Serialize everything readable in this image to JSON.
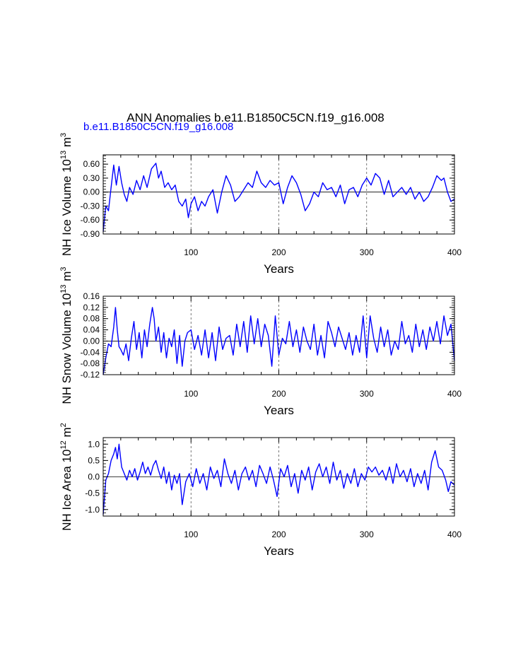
{
  "title": "ANN Anomalies b.e11.B1850C5CN.f19_g16.008",
  "subtitle": "b.e11.B1850C5CN.f19_g16.008",
  "colors": {
    "series": "#0000ff",
    "axis": "#000000",
    "refline": "#555555"
  },
  "chart_data": [
    {
      "type": "line",
      "ylabel": "NH Ice Volume",
      "ylabel_exp": "13",
      "ylabel_unit": "m",
      "ylabel_unit_exp": "3",
      "xlabel": "Years",
      "xlim": [
        0,
        400
      ],
      "ylim": [
        -0.9,
        0.8
      ],
      "xticks": [
        100,
        200,
        300,
        400
      ],
      "yticks": [
        -0.9,
        -0.6,
        -0.3,
        0.0,
        0.3,
        0.6
      ],
      "ytick_labels": [
        "-0.90",
        "-0.60",
        "-0.30",
        "0.00",
        "0.30",
        "0.60"
      ],
      "refx": [
        100,
        200,
        300
      ],
      "series": [
        {
          "name": "NH Ice Volume",
          "x": [
            0,
            3,
            6,
            9,
            12,
            15,
            18,
            21,
            24,
            27,
            30,
            34,
            38,
            42,
            46,
            50,
            55,
            60,
            63,
            66,
            70,
            74,
            78,
            82,
            86,
            90,
            94,
            97,
            100,
            104,
            108,
            112,
            116,
            120,
            125,
            130,
            135,
            140,
            145,
            150,
            155,
            160,
            165,
            170,
            175,
            180,
            185,
            190,
            195,
            200,
            205,
            210,
            215,
            220,
            225,
            230,
            235,
            240,
            245,
            250,
            255,
            260,
            265,
            270,
            275,
            280,
            285,
            290,
            295,
            300,
            305,
            310,
            315,
            320,
            325,
            330,
            335,
            340,
            345,
            350,
            355,
            360,
            365,
            370,
            375,
            380,
            385,
            388,
            392,
            396,
            400
          ],
          "values": [
            -0.85,
            -0.3,
            -0.4,
            0.1,
            0.58,
            0.15,
            0.55,
            0.2,
            -0.05,
            -0.2,
            0.1,
            -0.05,
            0.25,
            0.05,
            0.35,
            0.1,
            0.5,
            0.62,
            0.3,
            0.45,
            0.1,
            0.2,
            0.05,
            0.15,
            -0.2,
            -0.3,
            -0.15,
            -0.55,
            -0.25,
            -0.1,
            -0.4,
            -0.2,
            -0.3,
            -0.1,
            0.05,
            -0.45,
            0.0,
            0.35,
            0.15,
            -0.2,
            -0.1,
            0.05,
            0.2,
            0.1,
            0.45,
            0.2,
            0.1,
            0.25,
            0.15,
            0.2,
            -0.25,
            0.1,
            0.35,
            0.2,
            -0.05,
            -0.4,
            -0.25,
            0.0,
            -0.1,
            0.2,
            0.05,
            0.1,
            -0.1,
            0.15,
            -0.25,
            0.05,
            0.1,
            -0.1,
            0.15,
            0.3,
            0.15,
            0.4,
            0.3,
            -0.05,
            0.25,
            -0.1,
            0.0,
            0.1,
            -0.05,
            0.1,
            -0.15,
            0.0,
            -0.2,
            -0.1,
            0.1,
            0.35,
            0.25,
            0.3,
            0.0,
            -0.2,
            -0.15
          ]
        }
      ]
    },
    {
      "type": "line",
      "ylabel": "NH Snow Volume",
      "ylabel_exp": "13",
      "ylabel_unit": "m",
      "ylabel_unit_exp": "3",
      "xlabel": "Years",
      "xlim": [
        0,
        400
      ],
      "ylim": [
        -0.12,
        0.16
      ],
      "xticks": [
        100,
        200,
        300,
        400
      ],
      "yticks": [
        -0.12,
        -0.08,
        -0.04,
        0.0,
        0.04,
        0.08,
        0.12,
        0.16
      ],
      "ytick_labels": [
        "-0.12",
        "-0.08",
        "-0.04",
        "0.00",
        "0.04",
        "0.08",
        "0.12",
        "0.16"
      ],
      "refx": [
        100,
        200,
        300
      ],
      "series": [
        {
          "name": "NH Snow Volume",
          "x": [
            0,
            3,
            6,
            9,
            12,
            14,
            16,
            18,
            20,
            23,
            26,
            29,
            32,
            35,
            38,
            41,
            44,
            47,
            50,
            53,
            56,
            58,
            60,
            63,
            66,
            69,
            72,
            75,
            78,
            81,
            84,
            87,
            90,
            93,
            96,
            100,
            104,
            108,
            112,
            116,
            120,
            124,
            128,
            132,
            136,
            140,
            144,
            148,
            152,
            156,
            160,
            164,
            168,
            172,
            176,
            180,
            184,
            188,
            192,
            196,
            200,
            204,
            208,
            212,
            216,
            220,
            224,
            228,
            232,
            236,
            240,
            244,
            248,
            252,
            256,
            260,
            264,
            268,
            272,
            276,
            280,
            284,
            288,
            292,
            296,
            300,
            304,
            308,
            312,
            316,
            320,
            324,
            328,
            332,
            336,
            340,
            344,
            348,
            352,
            356,
            360,
            364,
            368,
            372,
            376,
            380,
            384,
            388,
            392,
            396,
            400
          ],
          "values": [
            -0.12,
            -0.06,
            -0.01,
            -0.02,
            0.05,
            0.12,
            0.04,
            -0.02,
            -0.03,
            -0.05,
            -0.01,
            -0.07,
            0.01,
            0.07,
            -0.03,
            0.03,
            -0.06,
            0.04,
            -0.02,
            0.06,
            0.12,
            0.08,
            0.0,
            0.05,
            -0.04,
            0.03,
            -0.06,
            0.01,
            -0.02,
            0.04,
            -0.08,
            0.02,
            -0.09,
            0.0,
            0.03,
            0.04,
            -0.03,
            0.02,
            -0.05,
            0.04,
            -0.06,
            0.03,
            -0.07,
            0.05,
            -0.03,
            0.01,
            0.02,
            -0.05,
            0.06,
            -0.02,
            0.07,
            -0.04,
            0.09,
            -0.01,
            0.08,
            -0.02,
            0.06,
            0.02,
            -0.09,
            0.09,
            -0.05,
            0.01,
            -0.01,
            0.07,
            -0.02,
            0.04,
            -0.04,
            0.05,
            0.0,
            -0.03,
            0.06,
            -0.05,
            0.02,
            -0.06,
            0.07,
            0.03,
            -0.02,
            0.05,
            0.01,
            -0.03,
            0.03,
            -0.05,
            0.02,
            -0.04,
            0.09,
            -0.06,
            0.09,
            0.01,
            -0.04,
            0.05,
            -0.02,
            0.04,
            -0.05,
            0.0,
            -0.03,
            0.07,
            -0.01,
            0.02,
            -0.04,
            0.06,
            -0.02,
            0.04,
            -0.03,
            0.05,
            0.0,
            0.07,
            -0.01,
            0.09,
            0.02,
            0.06,
            -0.07
          ]
        }
      ]
    },
    {
      "type": "line",
      "ylabel": "NH Ice Area",
      "ylabel_exp": "12",
      "ylabel_unit": "m",
      "ylabel_unit_exp": "2",
      "xlabel": "Years",
      "xlim": [
        0,
        400
      ],
      "ylim": [
        -1.2,
        1.2
      ],
      "xticks": [
        100,
        200,
        300,
        400
      ],
      "yticks": [
        -1.0,
        -0.5,
        0.0,
        0.5,
        1.0
      ],
      "ytick_labels": [
        "-1.0",
        "-0.5",
        "0.0",
        "0.5",
        "1.0"
      ],
      "refx": [
        100,
        200,
        300
      ],
      "series": [
        {
          "name": "NH Ice Area",
          "x": [
            0,
            3,
            6,
            9,
            12,
            14,
            16,
            18,
            21,
            24,
            27,
            30,
            33,
            36,
            39,
            42,
            45,
            48,
            51,
            54,
            57,
            60,
            63,
            66,
            69,
            72,
            75,
            78,
            81,
            84,
            87,
            90,
            94,
            98,
            102,
            106,
            110,
            114,
            118,
            122,
            126,
            130,
            134,
            138,
            142,
            146,
            150,
            154,
            158,
            162,
            166,
            170,
            174,
            178,
            182,
            186,
            190,
            194,
            198,
            202,
            206,
            210,
            214,
            218,
            222,
            226,
            230,
            234,
            238,
            242,
            246,
            250,
            254,
            258,
            262,
            266,
            270,
            274,
            278,
            282,
            286,
            290,
            294,
            298,
            302,
            306,
            310,
            314,
            318,
            322,
            326,
            330,
            334,
            338,
            342,
            346,
            350,
            354,
            358,
            362,
            366,
            370,
            374,
            378,
            382,
            386,
            390,
            393,
            396,
            400
          ],
          "values": [
            -1.15,
            -0.1,
            0.1,
            0.5,
            0.7,
            0.9,
            0.55,
            1.0,
            0.3,
            0.1,
            -0.1,
            0.2,
            0.0,
            0.25,
            -0.1,
            0.15,
            0.45,
            0.1,
            0.3,
            0.05,
            0.35,
            0.5,
            0.2,
            -0.05,
            0.3,
            -0.2,
            0.15,
            -0.4,
            0.05,
            -0.2,
            0.1,
            -0.85,
            -0.15,
            0.1,
            -0.3,
            0.25,
            -0.2,
            0.1,
            -0.4,
            0.3,
            -0.05,
            0.2,
            -0.3,
            0.55,
            0.1,
            -0.2,
            0.2,
            -0.4,
            0.1,
            0.3,
            -0.1,
            0.2,
            -0.3,
            0.35,
            0.1,
            -0.2,
            0.3,
            -0.1,
            -0.6,
            0.25,
            0.0,
            0.35,
            -0.3,
            0.1,
            -0.5,
            0.2,
            -0.1,
            0.3,
            -0.4,
            0.15,
            0.4,
            0.0,
            0.3,
            -0.2,
            0.45,
            -0.1,
            0.2,
            -0.35,
            0.1,
            -0.2,
            0.25,
            -0.3,
            0.1,
            -0.1,
            0.3,
            0.15,
            0.3,
            0.05,
            0.2,
            -0.1,
            0.3,
            -0.2,
            0.4,
            0.0,
            0.2,
            -0.15,
            0.25,
            -0.3,
            0.1,
            -0.2,
            0.2,
            -0.4,
            0.45,
            0.8,
            0.3,
            0.2,
            -0.1,
            -0.45,
            -0.15,
            -0.25
          ]
        }
      ]
    }
  ]
}
